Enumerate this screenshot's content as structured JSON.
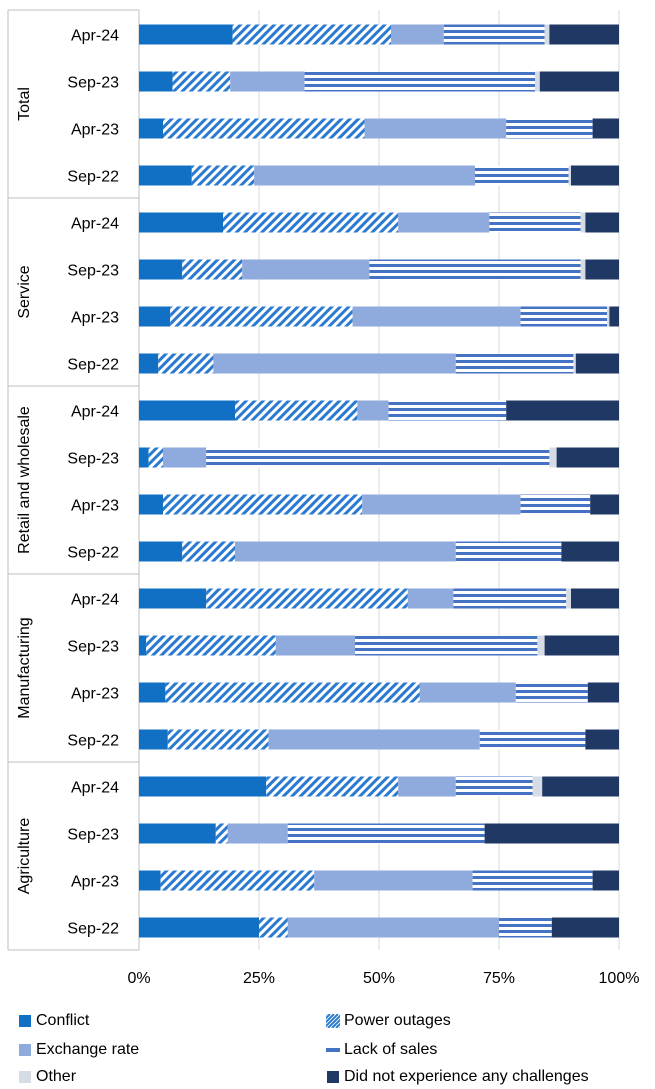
{
  "chart_data": {
    "type": "bar",
    "orientation": "horizontal",
    "stacked": true,
    "xlim": [
      0,
      100
    ],
    "x_ticks": [
      "0%",
      "25%",
      "50%",
      "75%",
      "100%"
    ],
    "grid": "vertical",
    "legend_position": "bottom",
    "series_names": [
      "Conflict",
      "Power outages",
      "Exchange rate",
      "Lack of sales",
      "Other",
      "Did not experience any challenges"
    ],
    "series_colors": [
      "#1170c4",
      "#2a7ad0",
      "#8faadc",
      "#4472c4",
      "#d6dce5",
      "#1f3864"
    ],
    "groups": [
      {
        "name": "Total",
        "rows": [
          {
            "label": "Apr-24",
            "values": [
              19.5,
              33,
              11,
              21,
              1,
              14.5
            ]
          },
          {
            "label": "Sep-23",
            "values": [
              7,
              12,
              15.5,
              48,
              1,
              16.5
            ]
          },
          {
            "label": "Apr-23",
            "values": [
              5,
              42,
              29.5,
              18,
              0,
              5.5
            ]
          },
          {
            "label": "Sep-22",
            "values": [
              11,
              13,
              46,
              19.5,
              0.5,
              10
            ]
          }
        ]
      },
      {
        "name": "Service",
        "rows": [
          {
            "label": "Apr-24",
            "values": [
              17.5,
              36.5,
              19,
              19,
              1,
              7
            ]
          },
          {
            "label": "Sep-23",
            "values": [
              9,
              12.5,
              26.5,
              44,
              1,
              7
            ]
          },
          {
            "label": "Apr-23",
            "values": [
              6.5,
              38,
              35,
              18,
              0.5,
              2
            ]
          },
          {
            "label": "Sep-22",
            "values": [
              4,
              11.5,
              50.5,
              24.5,
              0.5,
              9
            ]
          }
        ]
      },
      {
        "name": "Retail and wholesale",
        "rows": [
          {
            "label": "Apr-24",
            "values": [
              20,
              25.5,
              6.5,
              24.5,
              0,
              23.5
            ]
          },
          {
            "label": "Sep-23",
            "values": [
              2,
              3,
              9,
              71.5,
              1.5,
              13
            ]
          },
          {
            "label": "Apr-23",
            "values": [
              5,
              41.5,
              33,
              14.5,
              0,
              6
            ]
          },
          {
            "label": "Sep-22",
            "values": [
              9,
              11,
              46,
              22,
              0,
              12
            ]
          }
        ]
      },
      {
        "name": "Manufacturing",
        "rows": [
          {
            "label": "Apr-24",
            "values": [
              14,
              42,
              9.5,
              23.5,
              1,
              10
            ]
          },
          {
            "label": "Sep-23",
            "values": [
              1.5,
              27,
              16.5,
              38,
              1.5,
              15.5
            ]
          },
          {
            "label": "Apr-23",
            "values": [
              5.5,
              53,
              20,
              15,
              0,
              6.5
            ]
          },
          {
            "label": "Sep-22",
            "values": [
              6,
              21,
              44,
              22,
              0,
              7
            ]
          }
        ]
      },
      {
        "name": "Agriculture",
        "rows": [
          {
            "label": "Apr-24",
            "values": [
              26.5,
              27.5,
              12,
              16,
              2,
              16
            ]
          },
          {
            "label": "Sep-23",
            "values": [
              16,
              2.5,
              12.5,
              41,
              0,
              28
            ]
          },
          {
            "label": "Apr-23",
            "values": [
              4.5,
              32,
              33,
              25,
              0,
              5.5
            ]
          },
          {
            "label": "Sep-22",
            "values": [
              25,
              6,
              44,
              11,
              0,
              14
            ]
          }
        ]
      }
    ]
  }
}
